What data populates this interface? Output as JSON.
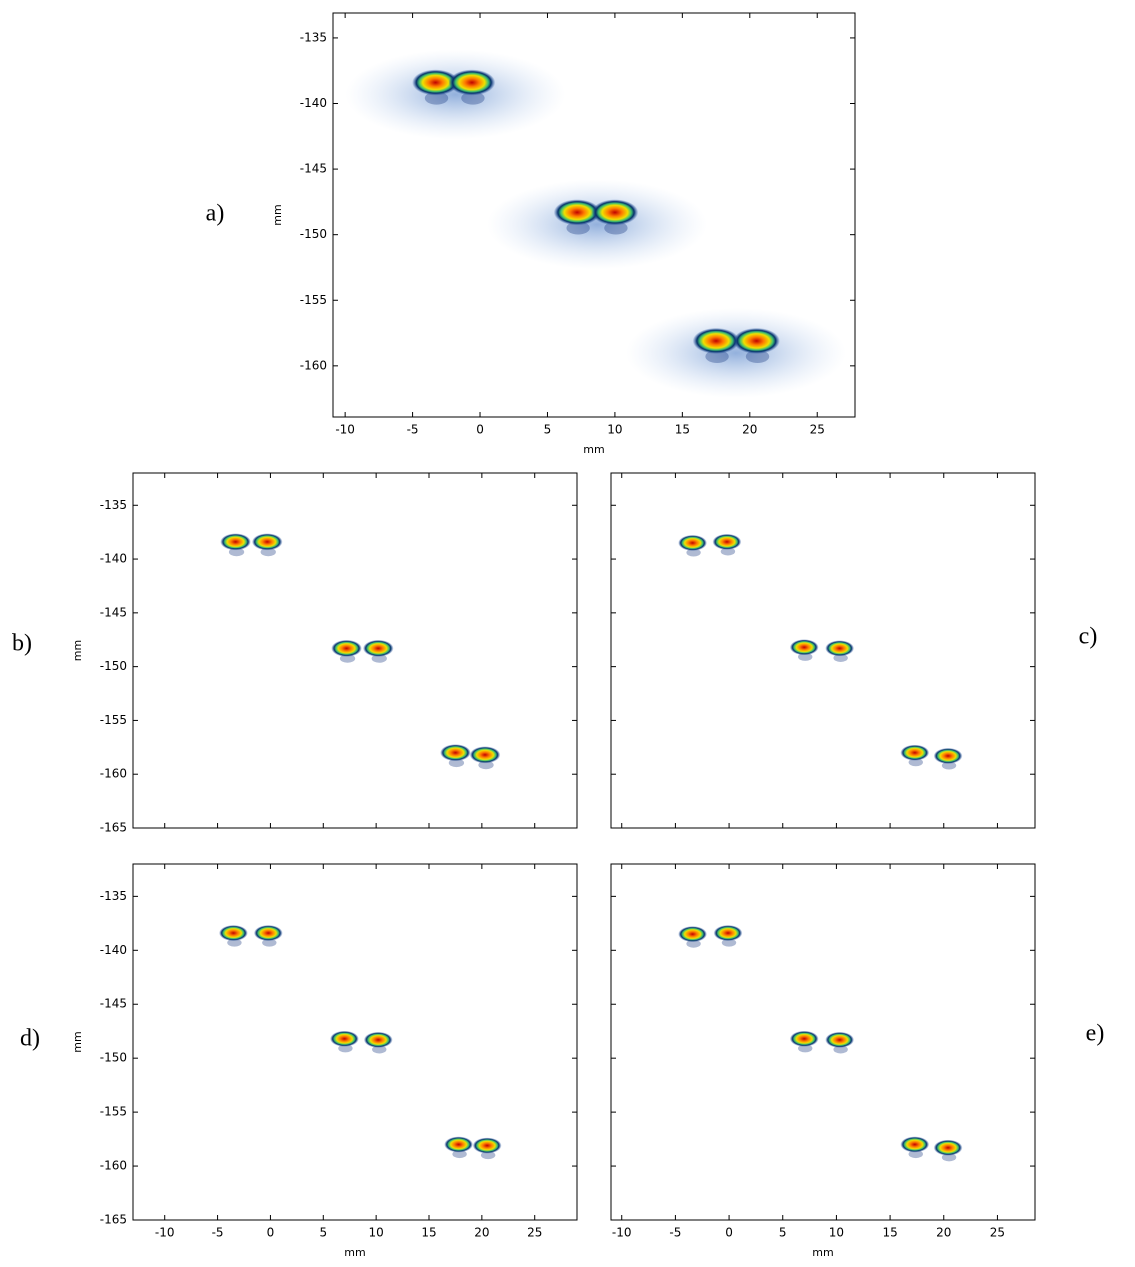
{
  "chart_data": [
    {
      "type": "scatter",
      "label": "a)",
      "xlabel": "mm",
      "ylabel": "mm",
      "xlim": [
        -10.9,
        27.8
      ],
      "ylim": [
        -163.9,
        -133.1
      ],
      "xticks": [
        -10,
        -5,
        0,
        5,
        10,
        15,
        20,
        25
      ],
      "yticks": [
        -135,
        -140,
        -145,
        -150,
        -155,
        -160
      ],
      "xtick_labels": true,
      "ytick_labels": true,
      "x": [
        -3.3,
        -0.6,
        7.2,
        10,
        17.5,
        20.5
      ],
      "y": [
        -138.4,
        -138.4,
        -148.3,
        -148.3,
        -158.1,
        -158.1
      ]
    },
    {
      "type": "scatter",
      "label": "b)",
      "ylabel": "mm",
      "xlim": [
        -13,
        29
      ],
      "ylim": [
        -165,
        -132
      ],
      "xticks": [
        -10,
        -5,
        0,
        5,
        10,
        15,
        20,
        25
      ],
      "yticks": [
        -135,
        -140,
        -145,
        -150,
        -155,
        -160,
        -165
      ],
      "xtick_labels": false,
      "ytick_labels": true,
      "x": [
        -3.3,
        -0.3,
        7.2,
        10.2,
        17.5,
        20.3
      ],
      "y": [
        -138.4,
        -138.4,
        -148.3,
        -148.3,
        -158.0,
        -158.2
      ]
    },
    {
      "type": "scatter",
      "label": "c)",
      "xlim": [
        -11,
        28.5
      ],
      "ylim": [
        -165,
        -132
      ],
      "xticks": [
        -10,
        -5,
        0,
        5,
        10,
        15,
        20,
        25
      ],
      "yticks": [
        -135,
        -140,
        -145,
        -150,
        -155,
        -160,
        -165
      ],
      "xtick_labels": false,
      "ytick_labels": false,
      "x": [
        -3.4,
        -0.2,
        7.0,
        10.3,
        17.3,
        20.4
      ],
      "y": [
        -138.5,
        -138.4,
        -148.2,
        -148.3,
        -158.0,
        -158.3
      ]
    },
    {
      "type": "scatter",
      "label": "d)",
      "xlabel": "mm",
      "ylabel": "mm",
      "xlim": [
        -13,
        29
      ],
      "ylim": [
        -165,
        -132
      ],
      "xticks": [
        -10,
        -5,
        0,
        5,
        10,
        15,
        20,
        25
      ],
      "yticks": [
        -135,
        -140,
        -145,
        -150,
        -155,
        -160,
        -165
      ],
      "xtick_labels": true,
      "ytick_labels": true,
      "x": [
        -3.5,
        -0.2,
        7.0,
        10.2,
        17.8,
        20.5
      ],
      "y": [
        -138.4,
        -138.4,
        -148.2,
        -148.3,
        -158.0,
        -158.1
      ]
    },
    {
      "type": "scatter",
      "label": "e)",
      "xlabel": "mm",
      "xlim": [
        -11,
        28.5
      ],
      "ylim": [
        -165,
        -132
      ],
      "xticks": [
        -10,
        -5,
        0,
        5,
        10,
        15,
        20,
        25
      ],
      "yticks": [
        -135,
        -140,
        -145,
        -150,
        -155,
        -160,
        -165
      ],
      "xtick_labels": true,
      "ytick_labels": false,
      "x": [
        -3.4,
        -0.1,
        7.0,
        10.3,
        17.3,
        20.4
      ],
      "y": [
        -138.5,
        -138.4,
        -148.2,
        -148.3,
        -158.0,
        -158.3
      ]
    }
  ]
}
